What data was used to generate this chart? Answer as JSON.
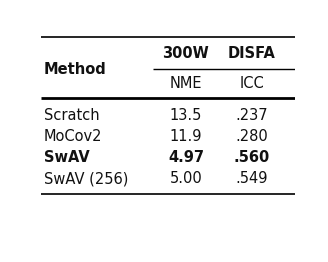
{
  "col_headers_top": [
    "300W",
    "DISFA"
  ],
  "col_headers_sub": [
    "NME",
    "ICC"
  ],
  "row_labels": [
    "Scratch",
    "MoCov2",
    "SwAV",
    "SwAV (256)"
  ],
  "col1_values": [
    "13.5",
    "11.9",
    "4.97",
    "5.00"
  ],
  "col2_values": [
    ".237",
    ".280",
    ".560",
    ".549"
  ],
  "bold_row": 2,
  "method_label": "Method",
  "bg_color": "#ffffff",
  "text_color": "#111111",
  "font_size": 10.5,
  "header_font_size": 10.5
}
